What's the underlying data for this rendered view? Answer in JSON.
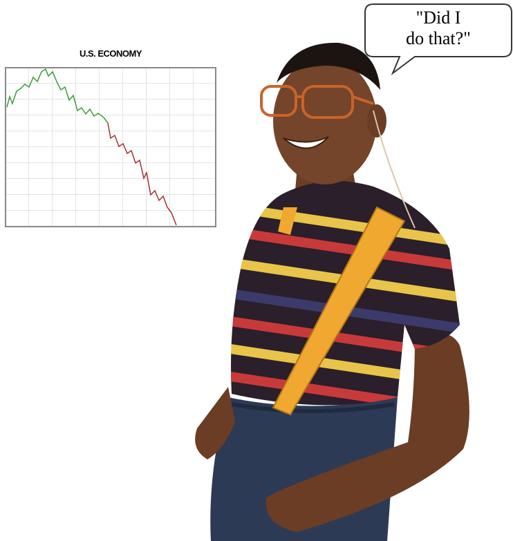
{
  "chart": {
    "title": "U.S. ECONOMY"
  },
  "speech_bubble": {
    "lines": [
      "\"Did I",
      "do that?\""
    ]
  }
}
